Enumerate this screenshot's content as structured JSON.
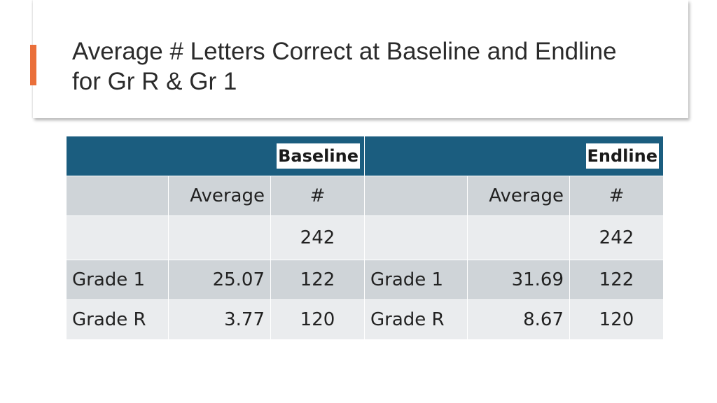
{
  "slide": {
    "title": "Average # Letters Correct at Baseline and Endline for Gr R & Gr 1",
    "accent_color": "#ea6f3a",
    "header_color": "#1b5d7f"
  },
  "table": {
    "groups": [
      {
        "label": "Baseline",
        "col_average": "Average",
        "col_count": "#",
        "total_count": "242",
        "rows": [
          {
            "label": "Grade 1",
            "average": "25.07",
            "count": "122"
          },
          {
            "label": "Grade R",
            "average": "3.77",
            "count": "120"
          }
        ]
      },
      {
        "label": "Endline",
        "col_average": "Average",
        "col_count": "#",
        "total_count": "242",
        "rows": [
          {
            "label": "Grade 1",
            "average": "31.69",
            "count": "122"
          },
          {
            "label": "Grade R",
            "average": "8.67",
            "count": "120"
          }
        ]
      }
    ]
  }
}
